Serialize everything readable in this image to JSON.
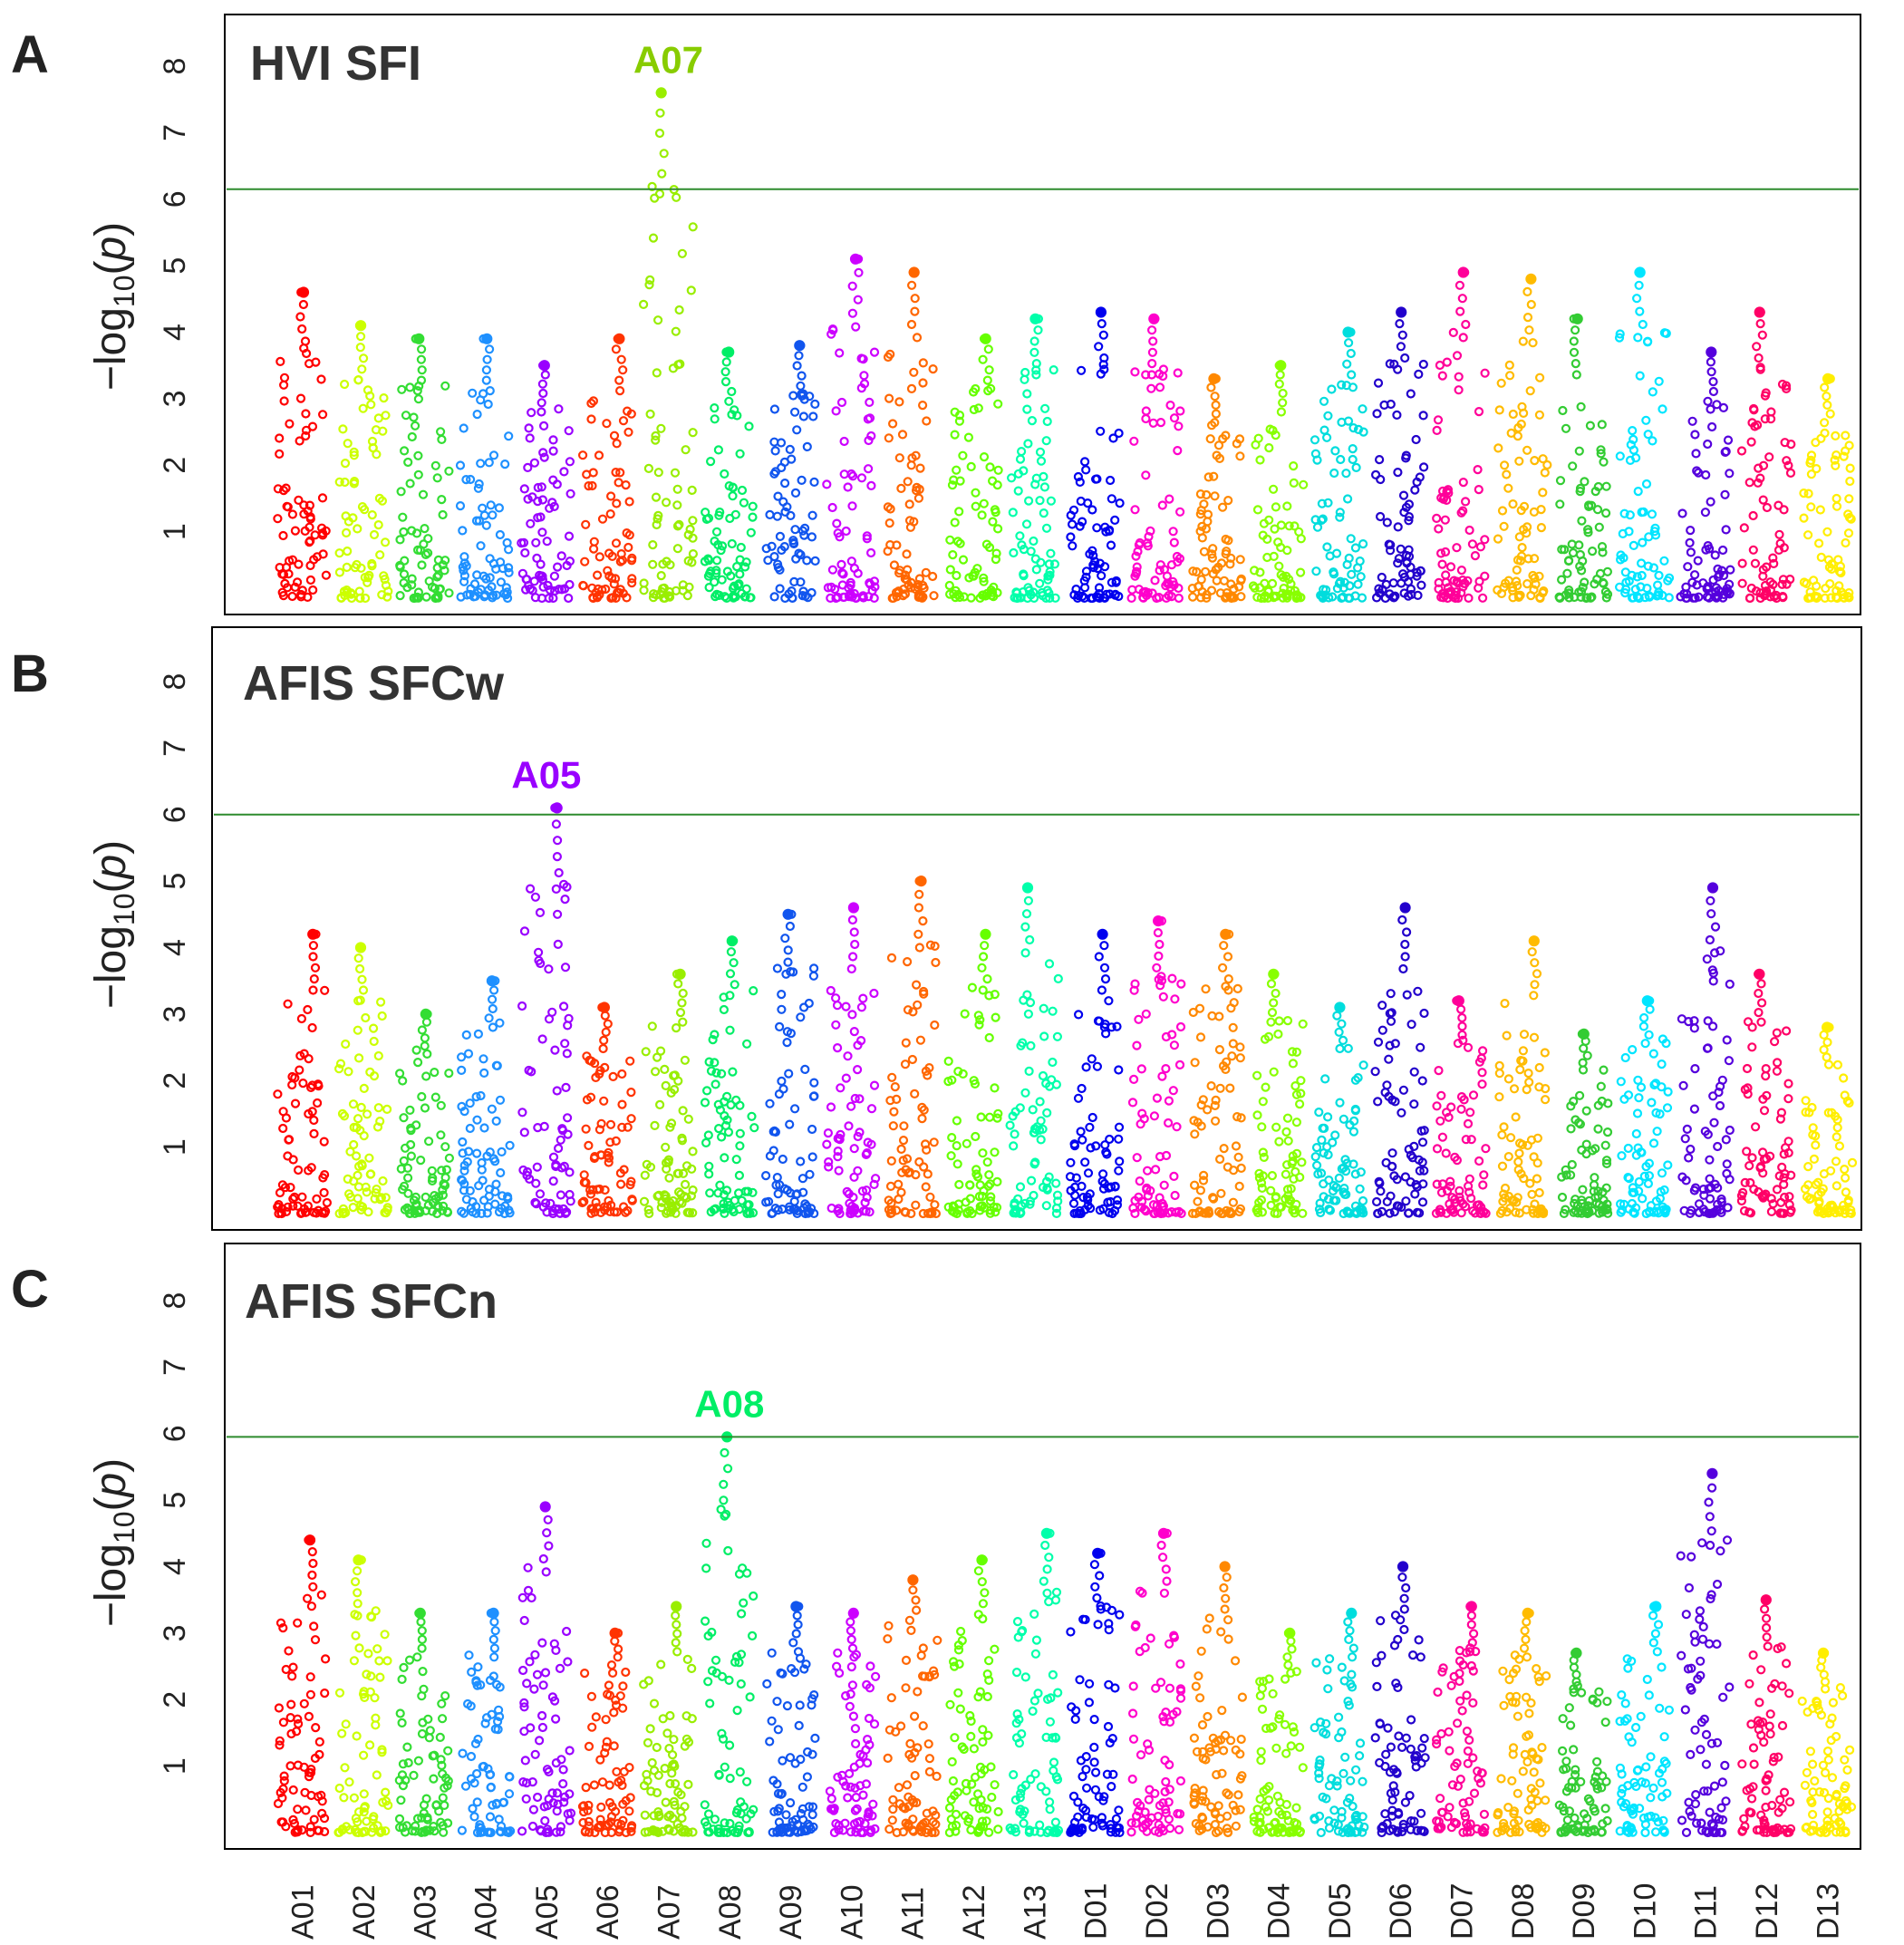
{
  "chart_data": {
    "type": "scatter",
    "kind": "manhattan",
    "ylabel": "−log10(p)",
    "yticks": [
      1,
      2,
      3,
      4,
      5,
      6,
      7,
      8
    ],
    "ylim": [
      0,
      8.6
    ],
    "chromosomes": [
      {
        "name": "A01",
        "color": "#ff0000"
      },
      {
        "name": "A02",
        "color": "#ccff00"
      },
      {
        "name": "A03",
        "color": "#33dd33"
      },
      {
        "name": "A04",
        "color": "#1e90ff"
      },
      {
        "name": "A05",
        "color": "#9900ff"
      },
      {
        "name": "A06",
        "color": "#ff3300"
      },
      {
        "name": "A07",
        "color": "#99ee00"
      },
      {
        "name": "A08",
        "color": "#00ee66"
      },
      {
        "name": "A09",
        "color": "#1155ee"
      },
      {
        "name": "A10",
        "color": "#cc00ff"
      },
      {
        "name": "A11",
        "color": "#ff6600"
      },
      {
        "name": "A12",
        "color": "#66ff00"
      },
      {
        "name": "A13",
        "color": "#00ffaa"
      },
      {
        "name": "D01",
        "color": "#0000ee"
      },
      {
        "name": "D02",
        "color": "#ff00cc"
      },
      {
        "name": "D03",
        "color": "#ff8800"
      },
      {
        "name": "D04",
        "color": "#88ff00"
      },
      {
        "name": "D05",
        "color": "#00dddd"
      },
      {
        "name": "D06",
        "color": "#2200cc"
      },
      {
        "name": "D07",
        "color": "#ff0099"
      },
      {
        "name": "D08",
        "color": "#ffbb00"
      },
      {
        "name": "D09",
        "color": "#33cc33"
      },
      {
        "name": "D10",
        "color": "#00e5ff"
      },
      {
        "name": "D11",
        "color": "#5500dd"
      },
      {
        "name": "D12",
        "color": "#ff0066"
      },
      {
        "name": "D13",
        "color": "#ffee00"
      }
    ],
    "panels": [
      {
        "letter": "A",
        "title": "HVI SFI",
        "threshold": 6.15,
        "peak_label": "A07",
        "peak_chrom": "A07",
        "peak_value": 7.6,
        "chrom_max": [
          4.6,
          4.1,
          3.9,
          3.9,
          3.5,
          3.9,
          7.6,
          3.7,
          3.8,
          5.1,
          4.9,
          3.9,
          4.2,
          4.3,
          4.2,
          3.3,
          3.5,
          4.0,
          4.3,
          4.9,
          4.8,
          4.2,
          4.9,
          3.7,
          4.3,
          3.3
        ]
      },
      {
        "letter": "B",
        "title": "AFIS SFCw",
        "threshold": 6.0,
        "peak_label": "A05",
        "peak_chrom": "A05",
        "peak_value": 6.1,
        "chrom_max": [
          4.2,
          4.0,
          3.0,
          3.5,
          6.1,
          3.1,
          3.6,
          4.1,
          4.5,
          4.6,
          5.0,
          4.2,
          4.9,
          4.2,
          4.4,
          4.2,
          3.6,
          3.1,
          4.6,
          3.2,
          4.1,
          2.7,
          3.2,
          4.9,
          3.6,
          2.8
        ]
      },
      {
        "letter": "C",
        "title": "AFIS SFCn",
        "threshold": 5.95,
        "peak_label": "A08",
        "peak_chrom": "A08",
        "peak_value": 5.95,
        "chrom_max": [
          4.4,
          4.1,
          3.3,
          3.3,
          4.9,
          3.0,
          3.4,
          5.95,
          3.4,
          3.3,
          3.8,
          4.1,
          4.5,
          4.2,
          4.5,
          4.0,
          3.0,
          3.3,
          4.0,
          3.4,
          3.3,
          2.7,
          3.4,
          5.4,
          3.5,
          2.7
        ]
      }
    ]
  }
}
